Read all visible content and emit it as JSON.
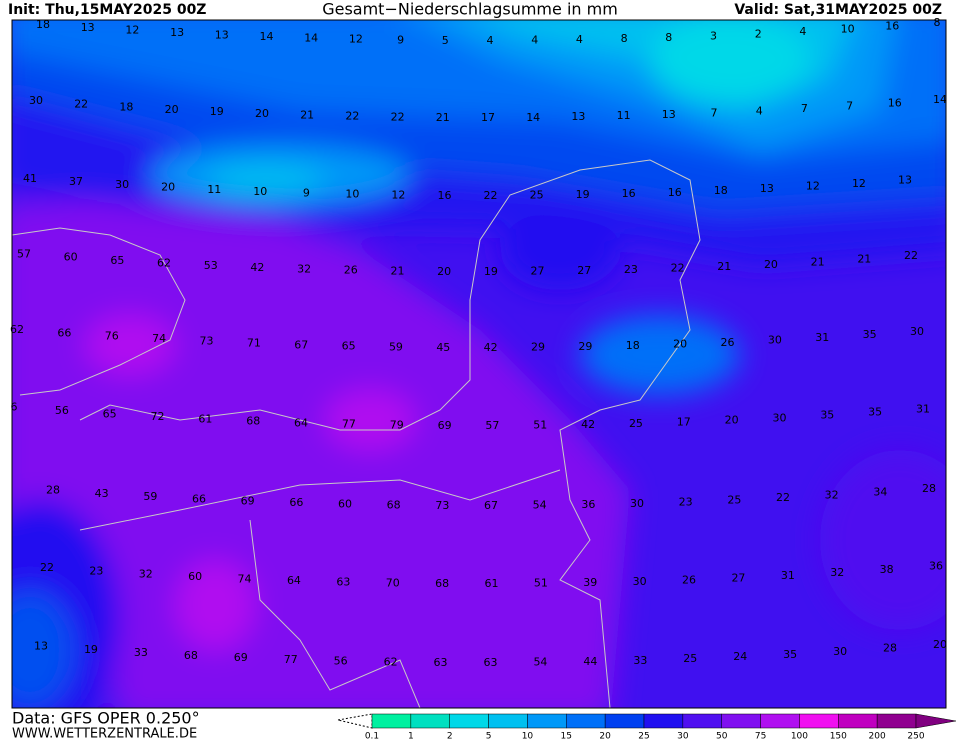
{
  "header": {
    "init": "Init: Thu,15MAY2025 00Z",
    "title": "Gesamt−Niederschlagsumme in mm",
    "valid": "Valid: Sat,31MAY2025 00Z"
  },
  "grid_values": [
    [
      18,
      13,
      12,
      13,
      13,
      14,
      14,
      12,
      9,
      5,
      4,
      4,
      4,
      8,
      8,
      3,
      2,
      4,
      10,
      16,
      8
    ],
    [
      30,
      22,
      18,
      20,
      19,
      20,
      21,
      22,
      22,
      21,
      17,
      14,
      13,
      11,
      13,
      7,
      4,
      7,
      7,
      16,
      14
    ],
    [
      41,
      37,
      30,
      20,
      11,
      10,
      9,
      10,
      12,
      16,
      22,
      25,
      19,
      16,
      16,
      18,
      13,
      12,
      12,
      13
    ],
    [
      57,
      60,
      65,
      62,
      53,
      42,
      32,
      26,
      21,
      20,
      19,
      27,
      27,
      23,
      22,
      21,
      20,
      21,
      21,
      22
    ],
    [
      62,
      66,
      76,
      74,
      73,
      71,
      67,
      65,
      59,
      45,
      42,
      29,
      29,
      18,
      20,
      26,
      30,
      31,
      35,
      30
    ],
    [
      6,
      56,
      65,
      72,
      61,
      68,
      64,
      77,
      79,
      69,
      57,
      51,
      42,
      25,
      17,
      20,
      30,
      35,
      35,
      31
    ],
    [
      28,
      43,
      59,
      66,
      69,
      66,
      60,
      68,
      73,
      67,
      54,
      36,
      30,
      23,
      25,
      22,
      32,
      34,
      28
    ],
    [
      22,
      23,
      32,
      60,
      74,
      64,
      63,
      70,
      68,
      61,
      51,
      39,
      30,
      26,
      27,
      31,
      32,
      38,
      36
    ],
    [
      13,
      19,
      33,
      68,
      69,
      77,
      56,
      62,
      63,
      63,
      54,
      44,
      33,
      25,
      24,
      35,
      30,
      28,
      20
    ]
  ],
  "legend": {
    "levels": [
      0.1,
      1,
      2,
      5,
      10,
      15,
      20,
      25,
      30,
      50,
      75,
      100,
      150,
      200,
      250
    ],
    "colors": [
      "#00f0a0",
      "#00e0c0",
      "#00d8e8",
      "#00c0f0",
      "#0098f8",
      "#0070f8",
      "#0040f0",
      "#2010f0",
      "#5010f0",
      "#8010f0",
      "#b010f0",
      "#f010f0",
      "#c000c0",
      "#900090",
      "#800080"
    ]
  },
  "footer": {
    "data": "Data: GFS OPER 0.250°",
    "site": "WWW.WETTERZENTRALE.DE"
  }
}
